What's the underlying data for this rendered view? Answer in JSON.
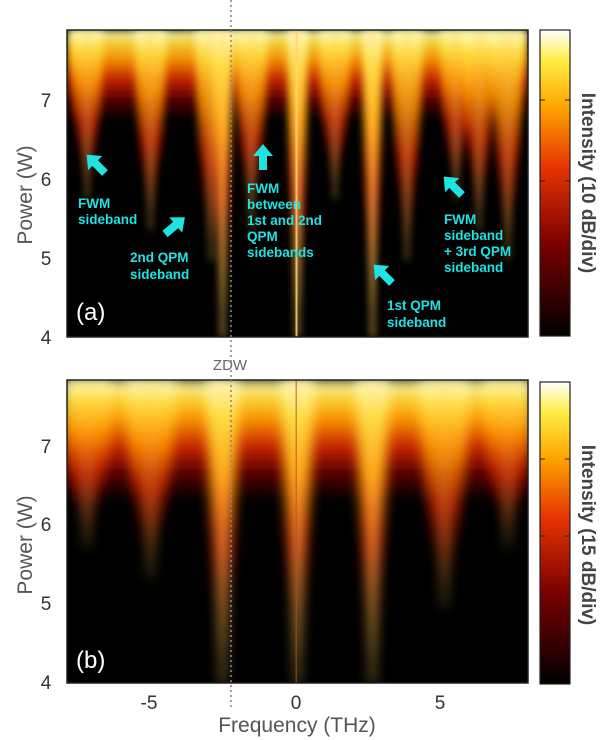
{
  "chart_data": [
    {
      "type": "heatmap",
      "panel_label": "(a)",
      "ylabel": "Power (W)",
      "xlabel": "",
      "xlim": [
        -8,
        8
      ],
      "ylim": [
        4,
        7.9
      ],
      "yticks": [
        "4",
        "5",
        "6",
        "7"
      ],
      "xticks": [],
      "colorbar_label": "Intensity (10 dB/div)",
      "colormap": "hot",
      "sideband_peaks_THz": [
        -7.3,
        -5.1,
        -3.0,
        -2.6,
        -1.6,
        0,
        1.3,
        2.6,
        3.8,
        5.5,
        6.3,
        7.3
      ],
      "annotations": [
        {
          "lines": [
            "FWM",
            "sideband"
          ]
        },
        {
          "lines": [
            "2nd QPM",
            "sideband"
          ]
        },
        {
          "lines": [
            "FWM",
            "between",
            "1st and 2nd",
            "QPM",
            "sidebands"
          ]
        },
        {
          "lines": [
            "1st QPM",
            "sideband"
          ]
        },
        {
          "lines": [
            "FWM",
            "sideband",
            "+ 3rd QPM",
            "sideband"
          ]
        }
      ]
    },
    {
      "type": "heatmap",
      "panel_label": "(b)",
      "ylabel": "Power (W)",
      "xlabel": "Frequency (THz)",
      "xlim": [
        -8,
        8
      ],
      "ylim": [
        4,
        7.9
      ],
      "yticks": [
        "4",
        "5",
        "6",
        "7"
      ],
      "xticks": [
        "-5",
        "0",
        "5"
      ],
      "colorbar_label": "Intensity (15 dB/div)",
      "colormap": "hot",
      "sideband_peaks_THz": [
        -7.3,
        -5.1,
        -2.6,
        0,
        2.6,
        5.1,
        7.3
      ]
    }
  ],
  "zdw_label": "ZDW",
  "zdw_THz": -2.2,
  "colors": {
    "annotation": "#1fe3e3",
    "zdw_line": "#888888",
    "background": "#000000"
  }
}
